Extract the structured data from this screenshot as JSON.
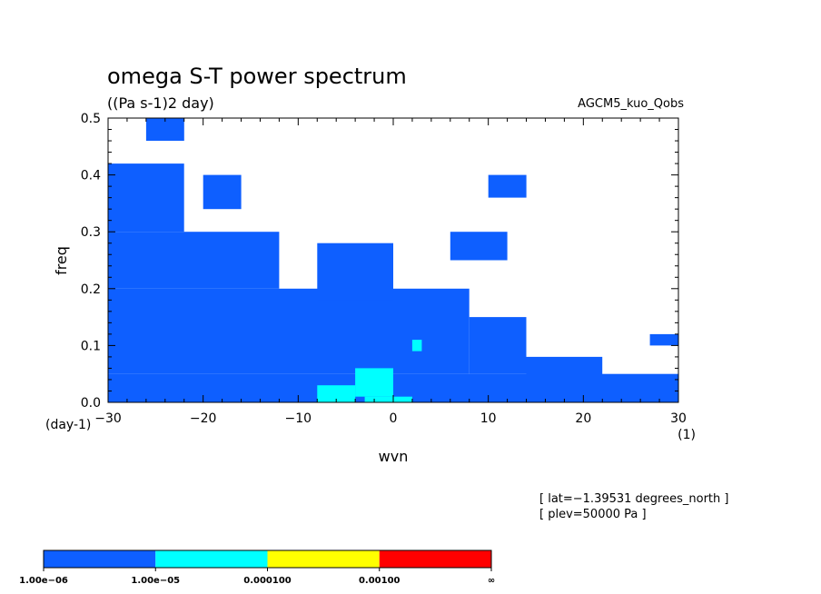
{
  "chart_data": {
    "type": "heatmap",
    "title": "omega S-T power spectrum",
    "units": "((Pa s-1)2 day)",
    "dataset": "AGCM5_kuo_Qobs",
    "xlabel": "wvn",
    "ylabel": "freq",
    "xunit": "(1)",
    "yunit": "(day-1)",
    "xlim": [
      -30,
      30
    ],
    "ylim": [
      0,
      0.5
    ],
    "xticks": [
      -30,
      -20,
      -10,
      0,
      10,
      20,
      30
    ],
    "yticks": [
      0.0,
      0.1,
      0.2,
      0.3,
      0.4,
      0.5
    ],
    "xtick_labels": [
      "−30",
      "−20",
      "−10",
      "0",
      "10",
      "20",
      "30"
    ],
    "ytick_labels": [
      "0.0",
      "0.1",
      "0.2",
      "0.3",
      "0.4",
      "0.5"
    ],
    "info": [
      "[ lat=−1.39531 degrees_north ]",
      "[ plev=50000 Pa ]"
    ],
    "levels": [
      "1.00e−06",
      "1.00e−05",
      "0.000100",
      "0.00100",
      "∞"
    ],
    "level_colors": [
      "#0e5fff",
      "#00ffff",
      "#ffff00",
      "#ff0000"
    ],
    "grid": false,
    "legend": "bottom-left colorbar",
    "regions": [
      {
        "level": 0,
        "wvn": [
          -30,
          30
        ],
        "freq": [
          0.0,
          0.05
        ]
      },
      {
        "level": 0,
        "wvn": [
          -30,
          8
        ],
        "freq": [
          0.05,
          0.2
        ]
      },
      {
        "level": 0,
        "wvn": [
          -30,
          -12
        ],
        "freq": [
          0.2,
          0.3
        ]
      },
      {
        "level": 0,
        "wvn": [
          -30,
          -22
        ],
        "freq": [
          0.3,
          0.42
        ]
      },
      {
        "level": 0,
        "wvn": [
          -8,
          0
        ],
        "freq": [
          0.18,
          0.28
        ]
      },
      {
        "level": 0,
        "wvn": [
          6,
          12
        ],
        "freq": [
          0.25,
          0.3
        ]
      },
      {
        "level": 0,
        "wvn": [
          8,
          14
        ],
        "freq": [
          0.05,
          0.15
        ]
      },
      {
        "level": 0,
        "wvn": [
          14,
          22
        ],
        "freq": [
          0.02,
          0.08
        ]
      },
      {
        "level": 0,
        "wvn": [
          -20,
          -16
        ],
        "freq": [
          0.34,
          0.4
        ]
      },
      {
        "level": 0,
        "wvn": [
          10,
          14
        ],
        "freq": [
          0.36,
          0.4
        ]
      },
      {
        "level": 0,
        "wvn": [
          -26,
          -22
        ],
        "freq": [
          0.46,
          0.5
        ]
      },
      {
        "level": 0,
        "wvn": [
          27,
          30
        ],
        "freq": [
          0.1,
          0.12
        ]
      },
      {
        "level": 1,
        "wvn": [
          -8,
          -4
        ],
        "freq": [
          0.0,
          0.03
        ]
      },
      {
        "level": 1,
        "wvn": [
          -4,
          0
        ],
        "freq": [
          0.01,
          0.06
        ]
      },
      {
        "level": 1,
        "wvn": [
          -3,
          2
        ],
        "freq": [
          0.0,
          0.01
        ]
      },
      {
        "level": 1,
        "wvn": [
          2,
          3
        ],
        "freq": [
          0.09,
          0.11
        ]
      }
    ]
  }
}
